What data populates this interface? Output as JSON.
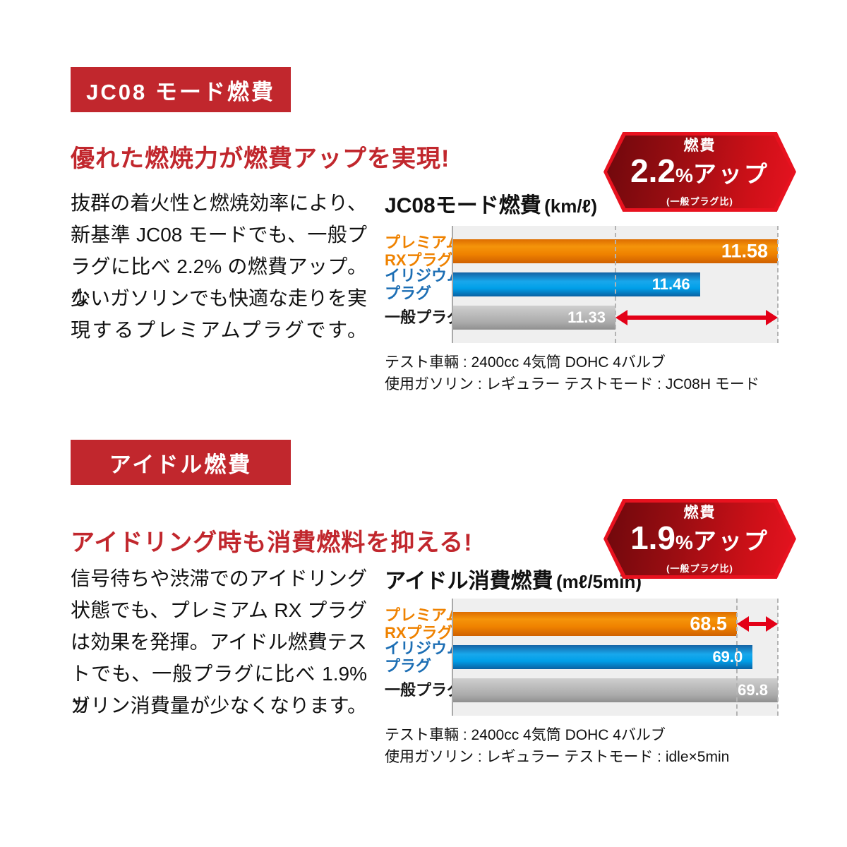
{
  "colors": {
    "section_red": "#c1272d",
    "badge_border_red": "#e8121f",
    "badge_gradient_dark": "#6f080c",
    "badge_gradient_bright": "#e51320",
    "bar_orange": "#ef8200",
    "bar_blue": "#009fe8",
    "bar_gray": "#b1b1b1",
    "label_orange": "#ef8200",
    "label_blue": "#1c6eb4",
    "plot_background": "#efefef",
    "arrow_red": "#e30017",
    "text_dark": "#111111"
  },
  "sections": [
    {
      "banner": "JC08 モード燃費",
      "headline": "優れた燃焼力が燃費アップを実現!",
      "body_lines": [
        "抜群の着火性と燃焼効率により、",
        "新基準 JC08 モードでも、一般プ",
        "ラグに比べ 2.2% の燃費アップ。少",
        "ないガソリンでも快適な走りを実",
        "現するプレミアムプラグです。"
      ],
      "badge": {
        "label": "燃費",
        "value": "2.2",
        "percent": "%",
        "suffix": "アップ",
        "note": "(一般プラグ比)"
      },
      "chart_title": "JC08モード燃費",
      "chart_unit": "(km/ℓ)",
      "note_line1": "テスト車輛 : 2400cc 4気筒 DOHC 4バルブ",
      "note_line2": "使用ガソリン : レギュラー  テストモード : JC08H モード"
    },
    {
      "banner": "アイドル燃費",
      "headline": "アイドリング時も消費燃料を抑える!",
      "body_lines": [
        "信号待ちや渋滞でのアイドリング",
        "状態でも、プレミアム RX プラグ",
        "は効果を発揮。アイドル燃費テス",
        "トでも、一般プラグに比べ 1.9% ガ",
        "ソリン消費量が少なくなります。"
      ],
      "badge": {
        "label": "燃費",
        "value": "1.9",
        "percent": "%",
        "suffix": "アップ",
        "note": "(一般プラグ比)"
      },
      "chart_title": "アイドル消費燃費",
      "chart_unit": "(mℓ/5min)",
      "note_line1": "テスト車輛 : 2400cc 4気筒 DOHC 4バルブ",
      "note_line2": "使用ガソリン : レギュラー  テストモード : idle×5min"
    }
  ],
  "chart_data": [
    {
      "type": "bar",
      "orientation": "horizontal",
      "title": "JC08モード燃費 (km/ℓ)",
      "categories": [
        "プレミアムRXプラグ",
        "イリジウムプラグ",
        "一般プラグ"
      ],
      "categories_lines": [
        [
          "プレミアム",
          "RXプラグ"
        ],
        [
          "イリジウム",
          "プラグ"
        ],
        [
          "一般プラグ"
        ]
      ],
      "values": [
        11.58,
        11.46,
        11.33
      ],
      "display_values": [
        "11.58",
        "11.46",
        "11.33"
      ],
      "bar_colors": [
        "#ef8200",
        "#009fe8",
        "#b1b1b1"
      ],
      "xlim": [
        11.08,
        11.58
      ],
      "dash_values": [
        11.33,
        11.58
      ],
      "arrow": {
        "from": 11.33,
        "to": 11.58,
        "row": 2
      },
      "grid": "dashed vertical guides at 11.33 and 11.58",
      "legend_position": "none",
      "annotation": "red double arrow = 2.2% gap vs 一般プラグ"
    },
    {
      "type": "bar",
      "orientation": "horizontal",
      "title": "アイドル消費燃費 (mℓ/5min)",
      "categories": [
        "プレミアムRXプラグ",
        "イリジウムプラグ",
        "一般プラグ"
      ],
      "categories_lines": [
        [
          "プレミアム",
          "RXプラグ"
        ],
        [
          "イリジウム",
          "プラグ"
        ],
        [
          "一般プラグ"
        ]
      ],
      "values": [
        68.5,
        69.0,
        69.8
      ],
      "display_values": [
        "68.5",
        "69.0",
        "69.8"
      ],
      "bar_colors": [
        "#ef8200",
        "#009fe8",
        "#b1b1b1"
      ],
      "xlim": [
        59.5,
        69.8
      ],
      "dash_values": [
        68.5,
        69.8
      ],
      "arrow": {
        "from": 68.5,
        "to": 69.8,
        "row": 0
      },
      "grid": "dashed vertical guides at 68.5 and 69.8",
      "legend_position": "none",
      "annotation": "red double arrow = 1.9% gap vs 一般プラグ"
    }
  ]
}
